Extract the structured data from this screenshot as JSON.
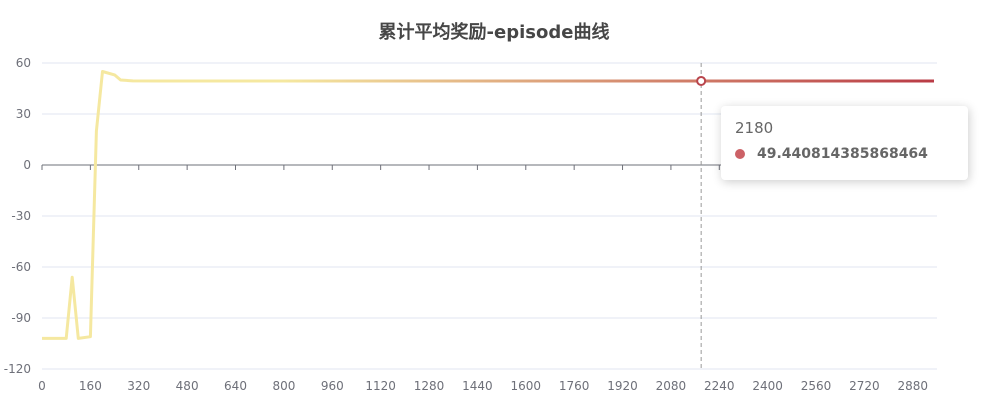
{
  "chart_data": {
    "type": "line",
    "title": "累计平均奖励-episode曲线",
    "xlabel": "",
    "ylabel": "",
    "xlim": [
      0,
      2960
    ],
    "ylim": [
      -120,
      60
    ],
    "x_ticks": [
      "0",
      "160",
      "320",
      "480",
      "640",
      "800",
      "960",
      "1120",
      "1280",
      "1440",
      "1600",
      "1760",
      "1920",
      "2080",
      "2240",
      "2400",
      "2560",
      "2720",
      "2880"
    ],
    "y_ticks": [
      "60",
      "30",
      "0",
      "-30",
      "-60",
      "-90",
      "-120"
    ],
    "grid": true,
    "legend": "none",
    "series": [
      {
        "name": "",
        "x": [
          0,
          80,
          100,
          120,
          160,
          180,
          200,
          240,
          260,
          300,
          400,
          2180,
          2950
        ],
        "values": [
          -102,
          -102,
          -66,
          -102,
          -101,
          20,
          55,
          53,
          50,
          49.5,
          49.44,
          49.440814385868464,
          49.44
        ]
      }
    ],
    "line_gradient": [
      "#f5e8a0",
      "#b93a45"
    ],
    "highlight": {
      "x": 2180,
      "y": 49.440814385868464
    }
  },
  "tooltip": {
    "x_label": "2180",
    "value": "49.440814385868464",
    "marker_color": "#cc6166"
  }
}
